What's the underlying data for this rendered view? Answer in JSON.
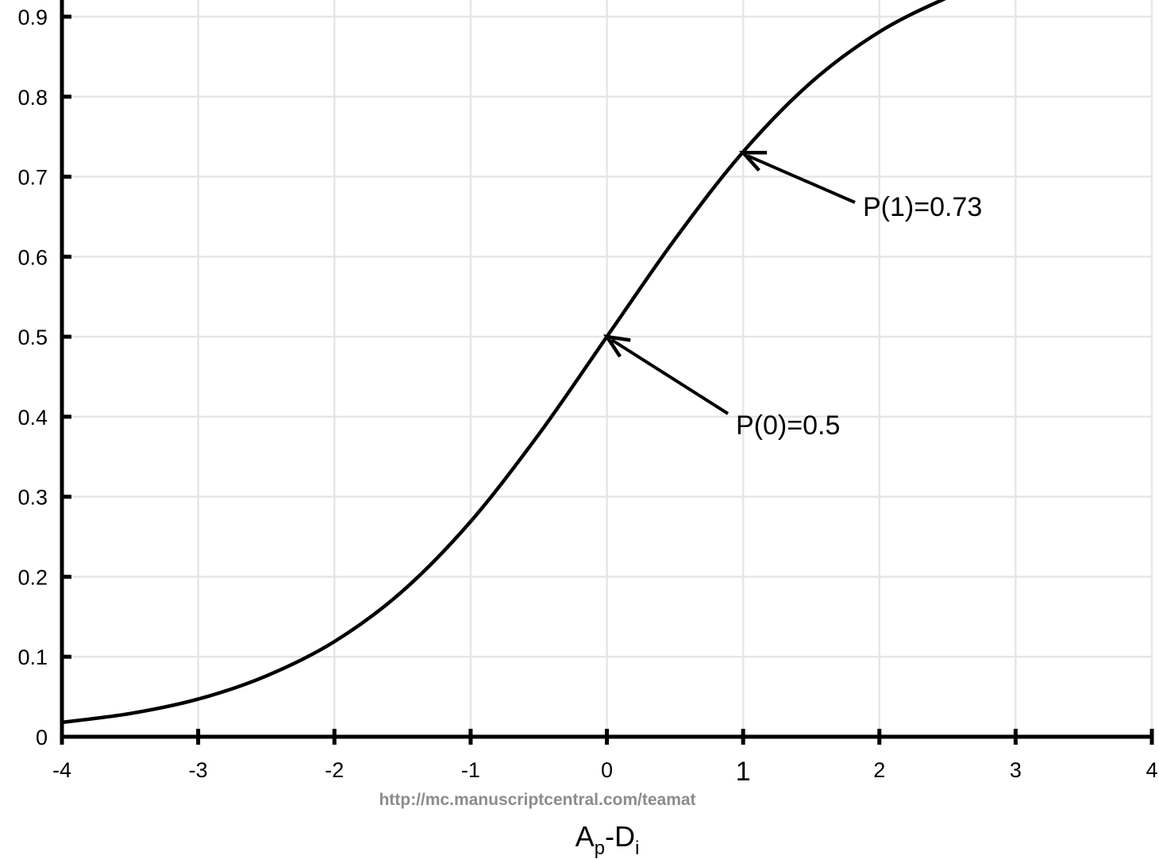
{
  "chart_data": {
    "type": "line",
    "xlabel": {
      "main_1": "A",
      "sub_1": "p",
      "main_2": "-D",
      "sub_2": "i"
    },
    "ylabel": "",
    "xlim": [
      -4,
      4
    ],
    "ylim": [
      0,
      0.9
    ],
    "x_ticks": [
      "-4",
      "-3",
      "-2",
      "-1",
      "0",
      "1",
      "2",
      "3",
      "4"
    ],
    "y_ticks": [
      "0",
      "0.1",
      "0.2",
      "0.3",
      "0.4",
      "0.5",
      "0.6",
      "0.7",
      "0.8",
      "0.9"
    ],
    "grid": true,
    "series": [
      {
        "x": [
          -4.0,
          -3.5,
          -3.0,
          -2.5,
          -2.0,
          -1.5,
          -1.0,
          -0.5,
          0.0,
          0.5,
          1.0,
          1.5,
          2.0,
          2.5
        ],
        "y": [
          0.018,
          0.029,
          0.047,
          0.076,
          0.119,
          0.182,
          0.269,
          0.378,
          0.5,
          0.622,
          0.731,
          0.818,
          0.881,
          0.924
        ],
        "color": "#000000"
      }
    ],
    "annotations": [
      {
        "text": "P(0)=0.5",
        "x": 0,
        "y": 0.5
      },
      {
        "text": "P(1)=0.73",
        "x": 1,
        "y": 0.73
      }
    ]
  },
  "watermark": "http://mc.manuscriptcentral.com/teamat"
}
